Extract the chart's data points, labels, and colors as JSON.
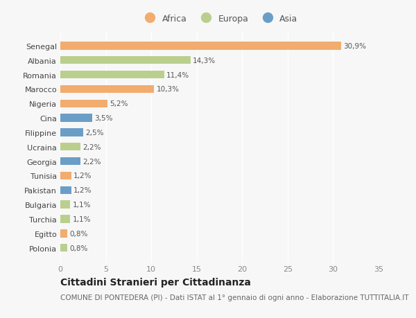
{
  "countries": [
    "Senegal",
    "Albania",
    "Romania",
    "Marocco",
    "Nigeria",
    "Cina",
    "Filippine",
    "Ucraina",
    "Georgia",
    "Tunisia",
    "Pakistan",
    "Bulgaria",
    "Turchia",
    "Egitto",
    "Polonia"
  ],
  "values": [
    30.9,
    14.3,
    11.4,
    10.3,
    5.2,
    3.5,
    2.5,
    2.2,
    2.2,
    1.2,
    1.2,
    1.1,
    1.1,
    0.8,
    0.8
  ],
  "labels": [
    "30,9%",
    "14,3%",
    "11,4%",
    "10,3%",
    "5,2%",
    "3,5%",
    "2,5%",
    "2,2%",
    "2,2%",
    "1,2%",
    "1,2%",
    "1,1%",
    "1,1%",
    "0,8%",
    "0,8%"
  ],
  "continents": [
    "Africa",
    "Europa",
    "Europa",
    "Africa",
    "Africa",
    "Asia",
    "Asia",
    "Europa",
    "Asia",
    "Africa",
    "Asia",
    "Europa",
    "Europa",
    "Africa",
    "Europa"
  ],
  "colors": {
    "Africa": "#F2AC6E",
    "Europa": "#BACF8E",
    "Asia": "#6B9EC7"
  },
  "xlim": [
    0,
    35
  ],
  "xticks": [
    0,
    5,
    10,
    15,
    20,
    25,
    30,
    35
  ],
  "title": "Cittadini Stranieri per Cittadinanza",
  "subtitle": "COMUNE DI PONTEDERA (PI) - Dati ISTAT al 1° gennaio di ogni anno - Elaborazione TUTTITALIA.IT",
  "background_color": "#f7f7f7",
  "bar_height": 0.55,
  "title_fontsize": 10,
  "subtitle_fontsize": 7.5,
  "label_fontsize": 7.5,
  "ytick_fontsize": 8,
  "xtick_fontsize": 8,
  "legend_fontsize": 9
}
